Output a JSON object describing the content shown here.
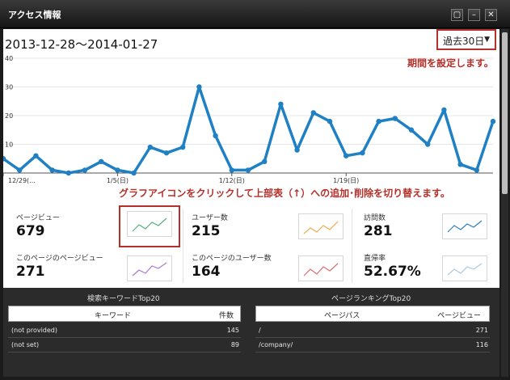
{
  "window": {
    "title": "アクセス情報"
  },
  "header": {
    "date_range": "2013-12-28～2014-01-27",
    "period_select": "過去30日"
  },
  "annotations": {
    "period_hint": "期間を設定します。",
    "graph_hint": "グラフアイコンをクリックして上部表（↑）への追加･削除を切り替えます。"
  },
  "chart_data": {
    "type": "line",
    "y_ticks": [
      "40",
      "30",
      "20",
      "10"
    ],
    "ylim": [
      0,
      40
    ],
    "x_tick_labels": [
      "12/29(...",
      "1/5(日)",
      "1/12(日)",
      "1/19(日)"
    ],
    "series": [
      {
        "values": [
          5,
          1,
          6,
          1,
          0,
          1,
          4,
          1,
          0,
          9,
          7,
          9,
          30,
          13,
          1,
          1,
          4,
          24,
          8,
          21,
          18,
          6,
          7,
          18,
          19,
          15,
          10,
          22,
          3,
          1,
          18
        ]
      }
    ],
    "line_color": "#1f80c4"
  },
  "metrics": [
    {
      "label": "ページビュー",
      "value": "679",
      "color": "#58b07a"
    },
    {
      "label": "ユーザー数",
      "value": "215",
      "color": "#f2a94b"
    },
    {
      "label": "訪問数",
      "value": "281",
      "color": "#2f7fbf"
    },
    {
      "label": "このページのページビュー",
      "value": "271",
      "color": "#a77ccc"
    },
    {
      "label": "このページのユーザー数",
      "value": "164",
      "color": "#e06b6b"
    },
    {
      "label": "直帰率",
      "value": "52.67%",
      "color": "#a9c9e6"
    }
  ],
  "keywords": {
    "title": "検索キーワードTop20",
    "col_keyword": "キーワード",
    "col_count": "件数",
    "rows": [
      {
        "keyword": "(not provided)",
        "count": "145"
      },
      {
        "keyword": "(not set)",
        "count": "89"
      }
    ]
  },
  "ranking": {
    "title": "ページランキングTop20",
    "col_path": "ページパス",
    "col_views": "ページビュー",
    "rows": [
      {
        "path": "/",
        "views": "271"
      },
      {
        "path": "/company/",
        "views": "116"
      }
    ]
  }
}
